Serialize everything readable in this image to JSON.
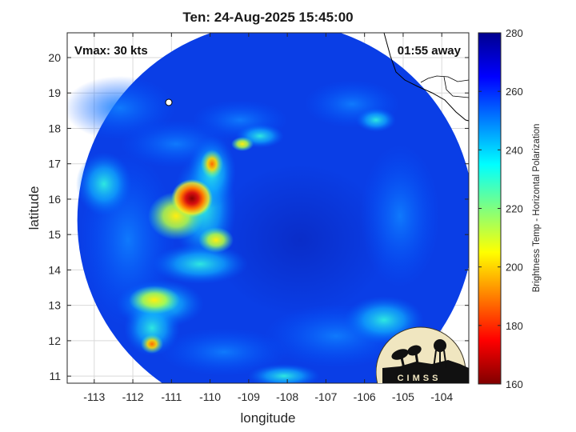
{
  "title": "Ten: 24-Aug-2025 15:45:00",
  "vmax_label": "Vmax: 30 kts",
  "time_label": "01:55 away",
  "logo_text": "CIMSS",
  "colorbar": {
    "label": "Brightness Temp - Horizontal Polarization",
    "ticks": [
      160,
      180,
      200,
      220,
      240,
      260,
      280
    ]
  },
  "chart_data": {
    "type": "heatmap",
    "xlabel": "longitude",
    "ylabel": "latitude",
    "xlim": [
      -113.7,
      -103.3
    ],
    "ylim": [
      10.8,
      20.7
    ],
    "xticks": [
      -113,
      -112,
      -111,
      -110,
      -109,
      -108,
      -107,
      -106,
      -105,
      -104
    ],
    "yticks": [
      11,
      12,
      13,
      14,
      15,
      16,
      17,
      18,
      19,
      20
    ],
    "clim": [
      160,
      280
    ],
    "colormap": "jet",
    "grid": true,
    "swath_center": [
      -108.3,
      15.4
    ],
    "background_tb": 263,
    "features": [
      {
        "lon": -110.4,
        "lat": 16.1,
        "tb": 170
      },
      {
        "lon": -110.1,
        "lat": 17.0,
        "tb": 205
      },
      {
        "lon": -109.4,
        "lat": 17.6,
        "tb": 215
      },
      {
        "lon": -110.8,
        "lat": 15.8,
        "tb": 235
      },
      {
        "lon": -110.0,
        "lat": 15.0,
        "tb": 230
      },
      {
        "lon": -111.2,
        "lat": 13.1,
        "tb": 215
      },
      {
        "lon": -111.3,
        "lat": 11.9,
        "tb": 195
      },
      {
        "lon": -104.7,
        "lat": 12.5,
        "tb": 242
      },
      {
        "lon": -108.0,
        "lat": 10.95,
        "tb": 235
      }
    ]
  }
}
